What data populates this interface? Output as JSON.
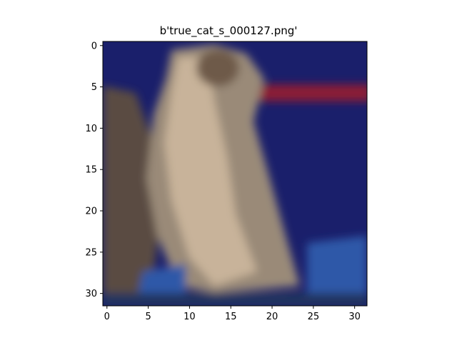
{
  "title": "b'true_cat_s_000127.png'",
  "x_ticks": [
    "0",
    "5",
    "10",
    "15",
    "20",
    "25",
    "30"
  ],
  "y_ticks": [
    "0",
    "5",
    "10",
    "15",
    "20",
    "25",
    "30"
  ],
  "image": {
    "grid_size": 32,
    "subject": "cat",
    "colors": {
      "background_blue": "#1a1f6b",
      "stripe_red": "#8b1f36",
      "cat_fur_light": "#c8b39a",
      "cat_fur_mid": "#9a8a78",
      "cat_fur_dark": "#5a4c42",
      "floor_blue": "#2d58a8",
      "floor_dark": "#24365e"
    }
  }
}
